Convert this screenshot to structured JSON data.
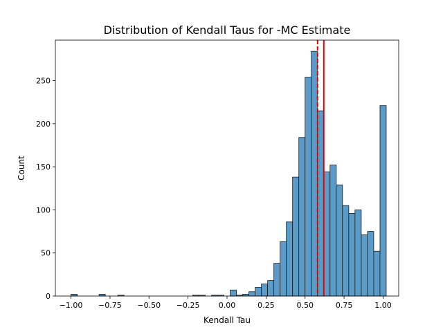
{
  "chart_data": {
    "type": "bar",
    "title": "Distribution of Kendall Taus for -MC Estimate",
    "xlabel": "Kendall Tau",
    "ylabel": "Count",
    "xlim": [
      -1.1,
      1.1
    ],
    "ylim": [
      0,
      297
    ],
    "x_ticks": [
      -1.0,
      -0.75,
      -0.5,
      -0.25,
      0.0,
      0.25,
      0.5,
      0.75,
      1.0
    ],
    "x_tick_labels": [
      "−1.00",
      "−0.75",
      "−0.50",
      "−0.25",
      "0.00",
      "0.25",
      "0.50",
      "0.75",
      "1.00"
    ],
    "y_ticks": [
      0,
      50,
      100,
      150,
      200,
      250
    ],
    "y_tick_labels": [
      "0",
      "50",
      "100",
      "150",
      "200",
      "250"
    ],
    "bin_width": 0.04,
    "bins": [
      {
        "x0": -1.0,
        "x1": -0.96,
        "count": 2
      },
      {
        "x0": -0.82,
        "x1": -0.78,
        "count": 2
      },
      {
        "x0": -0.7,
        "x1": -0.66,
        "count": 1
      },
      {
        "x0": -0.22,
        "x1": -0.18,
        "count": 1
      },
      {
        "x0": -0.18,
        "x1": -0.14,
        "count": 1
      },
      {
        "x0": -0.1,
        "x1": -0.06,
        "count": 1
      },
      {
        "x0": -0.06,
        "x1": -0.02,
        "count": 1
      },
      {
        "x0": 0.02,
        "x1": 0.06,
        "count": 7
      },
      {
        "x0": 0.06,
        "x1": 0.1,
        "count": 1
      },
      {
        "x0": 0.1,
        "x1": 0.14,
        "count": 2
      },
      {
        "x0": 0.14,
        "x1": 0.18,
        "count": 5
      },
      {
        "x0": 0.18,
        "x1": 0.22,
        "count": 10
      },
      {
        "x0": 0.22,
        "x1": 0.26,
        "count": 14
      },
      {
        "x0": 0.26,
        "x1": 0.3,
        "count": 18
      },
      {
        "x0": 0.3,
        "x1": 0.34,
        "count": 38
      },
      {
        "x0": 0.34,
        "x1": 0.38,
        "count": 63
      },
      {
        "x0": 0.38,
        "x1": 0.42,
        "count": 86
      },
      {
        "x0": 0.42,
        "x1": 0.46,
        "count": 138
      },
      {
        "x0": 0.46,
        "x1": 0.5,
        "count": 184
      },
      {
        "x0": 0.5,
        "x1": 0.54,
        "count": 254
      },
      {
        "x0": 0.54,
        "x1": 0.58,
        "count": 284
      },
      {
        "x0": 0.58,
        "x1": 0.62,
        "count": 215
      },
      {
        "x0": 0.62,
        "x1": 0.66,
        "count": 144
      },
      {
        "x0": 0.66,
        "x1": 0.7,
        "count": 152
      },
      {
        "x0": 0.7,
        "x1": 0.74,
        "count": 129
      },
      {
        "x0": 0.74,
        "x1": 0.78,
        "count": 105
      },
      {
        "x0": 0.78,
        "x1": 0.82,
        "count": 96
      },
      {
        "x0": 0.82,
        "x1": 0.86,
        "count": 100
      },
      {
        "x0": 0.86,
        "x1": 0.9,
        "count": 71
      },
      {
        "x0": 0.9,
        "x1": 0.94,
        "count": 75
      },
      {
        "x0": 0.94,
        "x1": 0.98,
        "count": 52
      },
      {
        "x0": 0.98,
        "x1": 1.02,
        "count": 221
      }
    ],
    "reference_lines": [
      {
        "x": 0.58,
        "style": "dashed",
        "color": "#e60000"
      },
      {
        "x": 0.62,
        "style": "solid",
        "color": "#e60000"
      }
    ],
    "bar_color": "#5b9bc8",
    "bar_edge_color": "#1a1a1a",
    "grid": false,
    "legend": "none"
  }
}
